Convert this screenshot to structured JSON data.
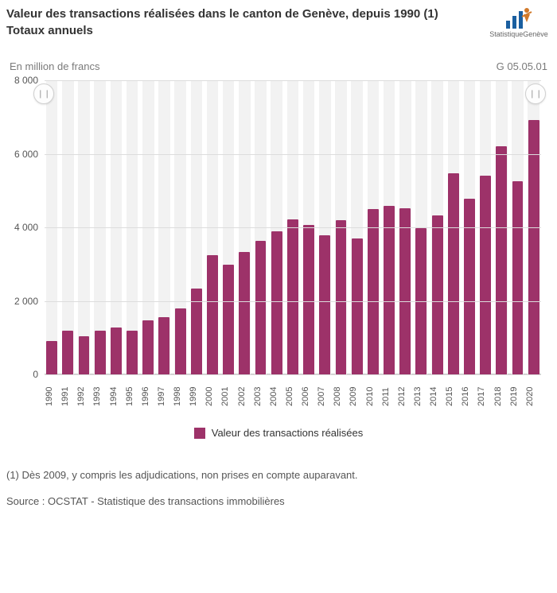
{
  "header": {
    "title": "Valeur des transactions réalisées dans le canton de Genève, depuis 1990 (1)",
    "subtitle": "Totaux annuels",
    "logo_text": "StatistiqueGenève"
  },
  "chart": {
    "type": "bar",
    "y_axis_label": "En million de francs",
    "code": "G 05.05.01",
    "ylim": [
      0,
      8000
    ],
    "ytick_step": 2000,
    "y_ticks": [
      0,
      2000,
      4000,
      6000,
      8000
    ],
    "y_tick_labels": [
      "0",
      "2 000",
      "4 000",
      "6 000",
      "8 000"
    ],
    "categories": [
      "1990",
      "1991",
      "1992",
      "1993",
      "1994",
      "1995",
      "1996",
      "1997",
      "1998",
      "1999",
      "2000",
      "2001",
      "2002",
      "2003",
      "2004",
      "2005",
      "2006",
      "2007",
      "2008",
      "2009",
      "2010",
      "2011",
      "2012",
      "2013",
      "2014",
      "2015",
      "2016",
      "2017",
      "2018",
      "2019",
      "2020"
    ],
    "values": [
      900,
      1180,
      1030,
      1180,
      1280,
      1200,
      1480,
      1560,
      1800,
      2340,
      3240,
      2980,
      3340,
      3640,
      3900,
      4220,
      4060,
      3780,
      4200,
      3700,
      4500,
      4580,
      4520,
      3970,
      4320,
      5470,
      4770,
      5410,
      6200,
      5250,
      6930
    ],
    "bar_color": "#9d3269",
    "bar_bg_color": "#f2f2f2",
    "grid_color": "#dcdcdc",
    "background_color": "#ffffff",
    "axis_font_size": 12,
    "axis_font_color": "#555555",
    "title_font_size": 15,
    "bar_width_ratio": 0.76
  },
  "legend": {
    "label": "Valeur des transactions réalisées",
    "swatch_color": "#9d3269"
  },
  "footnote": "(1) Dès 2009, y compris les adjudications, non prises en compte auparavant.",
  "source": "Source : OCSTAT - Statistique des transactions immobilières"
}
